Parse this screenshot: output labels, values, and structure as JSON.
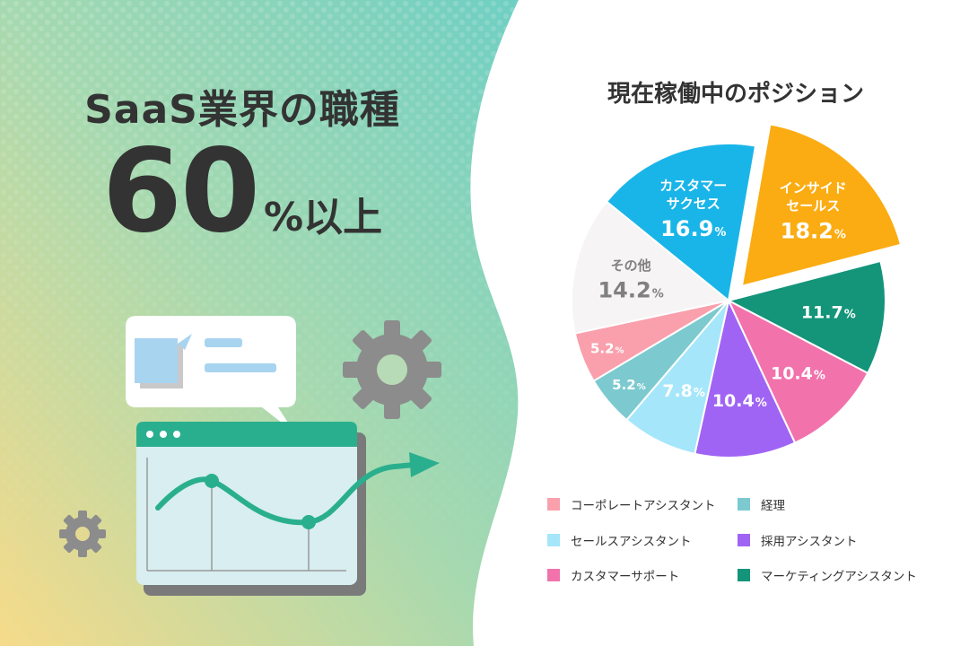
{
  "left_panel": {
    "title": "SaaS業界の職種",
    "stat_number": "60",
    "stat_suffix": "%以上"
  },
  "colors": {
    "accent_teal": "#2aaf8e",
    "gear_gray": "#8c8c8c"
  },
  "icons": [
    "chat-bubble-icon",
    "gear-icon",
    "browser-window-icon",
    "line-graph-icon",
    "arrow-icon"
  ],
  "chart_data": {
    "type": "pie",
    "title": "現在稼働中のポジション",
    "unit": "%",
    "slices": [
      {
        "label": "カスタマーサクセス",
        "lines": [
          "カスタマー",
          "サクセス"
        ],
        "value": 16.9,
        "color": "#1ab5e8",
        "text_color": "#ffffff",
        "exploded": false
      },
      {
        "label": "インサイドセールス",
        "lines": [
          "インサイド",
          "セールス"
        ],
        "value": 18.2,
        "color": "#fbac12",
        "text_color": "#ffffff",
        "exploded": true
      },
      {
        "label": "マーケティングアシスタント",
        "lines": [],
        "value": 11.7,
        "color": "#14957a",
        "text_color": "#ffffff",
        "exploded": false
      },
      {
        "label": "カスタマーサポート",
        "lines": [],
        "value": 10.4,
        "color": "#f272ac",
        "text_color": "#ffffff",
        "exploded": false
      },
      {
        "label": "採用アシスタント",
        "lines": [],
        "value": 10.4,
        "color": "#a064f4",
        "text_color": "#ffffff",
        "exploded": false
      },
      {
        "label": "セールスアシスタント",
        "lines": [],
        "value": 7.8,
        "color": "#a5e6fa",
        "text_color": "#ffffff",
        "exploded": false
      },
      {
        "label": "経理",
        "lines": [],
        "value": 5.2,
        "color": "#7ccacf",
        "text_color": "#ffffff",
        "exploded": false
      },
      {
        "label": "コーポレートアシスタント",
        "lines": [],
        "value": 5.2,
        "color": "#f9a0ac",
        "text_color": "#ffffff",
        "exploded": false
      },
      {
        "label": "その他",
        "lines": [
          "その他"
        ],
        "value": 14.2,
        "color": "#f6f4f5",
        "text_color": "#808080",
        "exploded": false
      }
    ],
    "legend": [
      {
        "label": "コーポレートアシスタント",
        "color": "#f9a0ac"
      },
      {
        "label": "経理",
        "color": "#7ccacf"
      },
      {
        "label": "セールスアシスタント",
        "color": "#a5e6fa"
      },
      {
        "label": "採用アシスタント",
        "color": "#a064f4"
      },
      {
        "label": "カスタマーサポート",
        "color": "#f272ac"
      },
      {
        "label": "マーケティングアシスタント",
        "color": "#14957a"
      }
    ],
    "legend_placement": "bottom"
  }
}
